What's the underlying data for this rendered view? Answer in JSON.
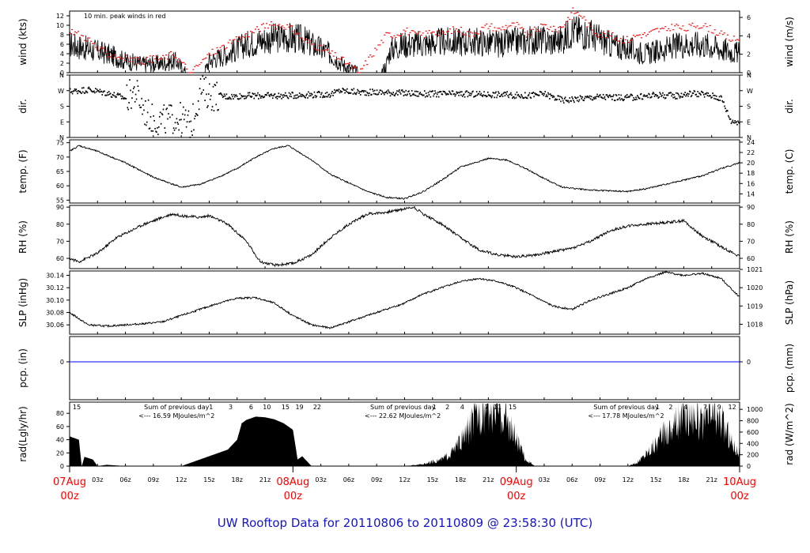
{
  "title": "UW Rooftop Data for 20110806  to  20110809 @ 23:58:30  (UTC)",
  "colors": {
    "series": "#000000",
    "peak": "#ff0000",
    "zero_line": "#0000ff",
    "date_label": "#ff0000",
    "radiation_note": "#9900cc",
    "title": "#1515c8"
  },
  "time_axis": {
    "ticks": [
      {
        "h": 3,
        "label": "03z"
      },
      {
        "h": 6,
        "label": "06z"
      },
      {
        "h": 9,
        "label": "09z"
      },
      {
        "h": 12,
        "label": "12z"
      },
      {
        "h": 15,
        "label": "15z"
      },
      {
        "h": 18,
        "label": "18z"
      },
      {
        "h": 21,
        "label": "21z"
      },
      {
        "h": 27,
        "label": "03z"
      },
      {
        "h": 30,
        "label": "06z"
      },
      {
        "h": 33,
        "label": "09z"
      },
      {
        "h": 36,
        "label": "12z"
      },
      {
        "h": 39,
        "label": "15z"
      },
      {
        "h": 42,
        "label": "18z"
      },
      {
        "h": 45,
        "label": "21z"
      },
      {
        "h": 51,
        "label": "03z"
      },
      {
        "h": 54,
        "label": "06z"
      },
      {
        "h": 57,
        "label": "09z"
      },
      {
        "h": 60,
        "label": "12z"
      },
      {
        "h": 63,
        "label": "15z"
      },
      {
        "h": 66,
        "label": "18z"
      },
      {
        "h": 69,
        "label": "21z"
      }
    ],
    "dates": [
      {
        "h": 0,
        "label": "07Aug",
        "time": "00z"
      },
      {
        "h": 24,
        "label": "08Aug",
        "time": "00z"
      },
      {
        "h": 48,
        "label": "09Aug",
        "time": "00z"
      },
      {
        "h": 72,
        "label": "10Aug",
        "time": "00z"
      }
    ]
  },
  "panels": [
    {
      "id": "wind",
      "left_label": "wind (kts)",
      "right_label": "wind (m/s)",
      "ylim": [
        0,
        13
      ],
      "left_ticks": [
        "0",
        "2",
        "4",
        "6",
        "8",
        "10",
        "12"
      ],
      "right_ticks": [
        "0",
        "2",
        "4",
        "6"
      ],
      "right_values": [
        0,
        3.89,
        7.78,
        11.66
      ],
      "note": "10 min. peak winds in red"
    },
    {
      "id": "dir",
      "left_label": "dir.",
      "right_label": "dir.",
      "ylim": [
        0,
        360
      ],
      "left_ticks": [
        "N",
        "E",
        "S",
        "W",
        "N"
      ],
      "right_ticks": [
        "N",
        "E",
        "S",
        "W",
        "N"
      ],
      "tick_values": [
        0,
        90,
        180,
        270,
        360
      ]
    },
    {
      "id": "temp",
      "left_label": "temp. (F)",
      "right_label": "temp. (C)",
      "ylim": [
        54,
        76
      ],
      "left_ticks": [
        "55",
        "60",
        "65",
        "70",
        "75"
      ],
      "right_ticks": [
        "14",
        "16",
        "18",
        "20",
        "22",
        "24"
      ],
      "right_values": [
        57.2,
        60.8,
        64.4,
        68,
        71.6,
        75.2
      ]
    },
    {
      "id": "rh",
      "left_label": "RH (%)",
      "right_label": "RH (%)",
      "ylim": [
        54,
        91
      ],
      "left_ticks": [
        "60",
        "70",
        "80",
        "90"
      ],
      "right_ticks": [
        "60",
        "70",
        "80",
        "90"
      ]
    },
    {
      "id": "slp",
      "left_label": "SLP (inHg)",
      "right_label": "SLP (hPa)",
      "ylim": [
        30.045,
        30.147
      ],
      "left_ticks": [
        "30.06",
        "30.08",
        "30.10",
        "30.12",
        "30.14"
      ],
      "right_ticks": [
        "1018",
        "1019",
        "1020",
        "1021"
      ],
      "right_values": [
        30.061,
        30.0905,
        30.12,
        30.1495
      ]
    },
    {
      "id": "pcp",
      "left_label": "pcp. (in)",
      "right_label": "pcp. (mm)",
      "ylim": [
        -0.6,
        0.4
      ],
      "left_ticks": [
        "0"
      ],
      "right_ticks": [
        "0"
      ]
    },
    {
      "id": "rad",
      "left_label": "rad(Lgly/hr)",
      "right_label": "rad (W/m^2)",
      "ylim": [
        0,
        97
      ],
      "left_ticks": [
        "0",
        "20",
        "40",
        "60",
        "80"
      ],
      "right_ticks": [
        "0",
        "200",
        "400",
        "600",
        "800",
        "1000"
      ],
      "right_values": [
        0,
        17.2,
        34.4,
        51.6,
        68.8,
        86
      ]
    }
  ],
  "radiation_notes": [
    {
      "x_h": 1.5,
      "hours": [
        "15"
      ]
    },
    {
      "x_h": 17,
      "hours": [
        "1",
        "3",
        "6",
        "10",
        "15",
        "19",
        "22"
      ],
      "hours_h": [
        15.2,
        17.3,
        19.5,
        21.2,
        23.2,
        24.7,
        26.6
      ],
      "sum_label": "Sum of previous day",
      "value_label": "<--- 16.59 MJoules/m^2",
      "label_h": 11.5
    },
    {
      "x_h": 41,
      "hours": [
        "1",
        "2",
        "4",
        "7",
        "11",
        "15"
      ],
      "hours_h": [
        39.2,
        40.6,
        42.2,
        44.8,
        46.0,
        47.6
      ],
      "sum_label": "Sum of previous day",
      "value_label": "<--- 22.62 MJoules/m^2",
      "label_h": 35.8
    },
    {
      "x_h": 65,
      "hours": [
        "1",
        "2",
        "4",
        "7",
        "9",
        "12"
      ],
      "hours_h": [
        63.2,
        64.6,
        66.2,
        68.3,
        69.8,
        71.2
      ],
      "sum_label": "Sum of previous day",
      "value_label": "<--- 17.78 MJoules/m^2",
      "label_h": 59.8
    }
  ],
  "chart_data": {
    "type": "line",
    "title": "UW Rooftop Data for 20110806  to  20110809 @ 23:58:30  (UTC)",
    "x": {
      "unit": "hours after 07Aug 00z",
      "range": [
        0,
        72
      ]
    },
    "series": [
      {
        "name": "wind (kts)",
        "type": "line",
        "x": [
          0,
          2,
          4,
          6,
          8,
          10,
          11.5,
          12,
          12.5,
          14,
          14.5,
          15,
          17,
          19,
          21,
          23,
          25,
          26,
          28,
          29.5,
          31,
          31.5,
          33.5,
          34,
          34.5,
          36,
          38,
          40,
          42,
          44,
          46,
          48,
          50,
          52,
          53,
          54,
          56,
          58,
          60,
          62,
          64,
          66,
          68,
          70,
          72
        ],
        "y": [
          6,
          5,
          4,
          2.5,
          1.8,
          2,
          2.5,
          1,
          0,
          0,
          0,
          2.5,
          4,
          6,
          7,
          7.5,
          7,
          6,
          4,
          1.5,
          0,
          0,
          0,
          1.5,
          5,
          6,
          6,
          6.5,
          6.5,
          6.5,
          6,
          6.5,
          7,
          6.5,
          7,
          9,
          8,
          6,
          5,
          4,
          5,
          6,
          6,
          5,
          4
        ]
      },
      {
        "name": "dir. (deg)",
        "type": "scatter",
        "x": [
          0,
          2,
          4,
          6,
          7,
          8,
          9,
          10,
          11,
          12,
          13,
          14,
          15,
          17,
          19,
          21,
          23,
          25,
          28,
          29,
          31,
          33,
          36,
          38,
          41,
          45,
          47,
          49,
          51,
          52,
          53,
          55,
          57,
          59,
          61,
          63,
          65,
          67,
          69,
          70,
          71,
          72
        ],
        "y": [
          265,
          275,
          255,
          225,
          270,
          150,
          100,
          100,
          110,
          110,
          60,
          280,
          245,
          235,
          240,
          240,
          240,
          245,
          248,
          270,
          260,
          260,
          255,
          250,
          250,
          248,
          245,
          240,
          250,
          230,
          215,
          225,
          235,
          228,
          232,
          245,
          240,
          255,
          240,
          225,
          95,
          90
        ]
      },
      {
        "name": "temp. (F)",
        "type": "line",
        "x": [
          0,
          1,
          3,
          6,
          9,
          12,
          14,
          16,
          18,
          20,
          22,
          23.5,
          24,
          26,
          28,
          30,
          32,
          34,
          36,
          38,
          40,
          42,
          45,
          47,
          49,
          51,
          53,
          56,
          60,
          62,
          64,
          66,
          68,
          70,
          72
        ],
        "y": [
          72,
          74,
          72,
          68,
          63,
          59.5,
          60.5,
          63,
          66,
          70,
          73,
          74,
          73,
          69,
          64,
          61,
          58,
          56,
          55.5,
          58,
          62,
          66.5,
          69.5,
          69,
          66,
          62.5,
          59.5,
          58.5,
          58,
          59,
          60.5,
          62,
          63.5,
          66,
          68
        ]
      },
      {
        "name": "RH (%)",
        "type": "line",
        "x": [
          0,
          1,
          3,
          5,
          8,
          10,
          11,
          12,
          14,
          15,
          17,
          19,
          20.5,
          22,
          24,
          26,
          28,
          30,
          32,
          34,
          36,
          37,
          38,
          40,
          42,
          44,
          46,
          48,
          50,
          52,
          54,
          56,
          58,
          60,
          62,
          64,
          66,
          68,
          70,
          72
        ],
        "y": [
          60,
          58,
          63,
          72,
          80,
          84,
          86,
          85,
          84,
          85,
          80,
          70,
          58,
          56,
          57,
          62,
          72,
          80,
          86,
          87,
          89,
          90,
          86,
          80,
          72,
          65,
          62,
          61,
          62,
          64,
          66,
          70,
          76,
          79,
          80,
          81,
          82,
          73,
          67,
          61
        ]
      },
      {
        "name": "SLP (inHg)",
        "type": "line",
        "x": [
          0,
          2,
          4,
          6,
          8,
          10,
          12,
          14,
          16,
          18,
          20,
          22,
          24,
          26,
          28,
          30,
          32,
          34,
          36,
          38,
          40,
          42,
          44,
          46,
          48,
          50,
          52,
          54,
          56,
          58,
          60,
          62,
          64,
          66,
          68,
          70,
          72
        ],
        "y": [
          30.08,
          30.06,
          30.058,
          30.06,
          30.062,
          30.065,
          30.075,
          30.085,
          30.095,
          30.103,
          30.104,
          30.095,
          30.075,
          30.06,
          30.055,
          30.065,
          30.075,
          30.085,
          30.095,
          30.11,
          30.12,
          30.13,
          30.135,
          30.13,
          30.12,
          30.105,
          30.09,
          30.085,
          30.1,
          30.11,
          30.12,
          30.135,
          30.145,
          30.14,
          30.143,
          30.135,
          30.105
        ]
      },
      {
        "name": "pcp. (in)",
        "type": "line",
        "x": [
          0,
          72
        ],
        "y": [
          0,
          0
        ]
      },
      {
        "name": "rad (Lgly/hr)",
        "type": "area",
        "x": [
          0,
          1,
          1.3,
          1.6,
          2.5,
          3,
          4,
          6,
          12,
          13,
          14,
          15,
          16,
          17,
          18,
          18.5,
          19,
          20,
          21,
          22,
          23,
          24,
          24.5,
          25,
          26,
          36,
          38,
          40,
          41,
          42,
          43,
          44,
          45,
          46,
          47,
          48,
          49,
          50,
          60,
          61,
          62,
          63,
          64,
          65,
          66,
          67,
          68,
          69,
          70,
          71,
          72
        ],
        "y": [
          45,
          40,
          0,
          14,
          10,
          0,
          2,
          0,
          0,
          5,
          10,
          15,
          20,
          25,
          40,
          65,
          70,
          75,
          74,
          71,
          65,
          55,
          10,
          15,
          0,
          0,
          3,
          10,
          20,
          35,
          60,
          80,
          90,
          88,
          70,
          40,
          10,
          0,
          0,
          5,
          20,
          35,
          50,
          65,
          75,
          85,
          60,
          80,
          70,
          40,
          20
        ]
      },
      {
        "name": "10 min. peak winds",
        "type": "scatter",
        "x": [
          0,
          1,
          2,
          3,
          4,
          5,
          6,
          7,
          8,
          9,
          10,
          11,
          13,
          15,
          16,
          17,
          18,
          19,
          20,
          21,
          22,
          23,
          24,
          25,
          26,
          27,
          28,
          29,
          31,
          34,
          35,
          36,
          37,
          38,
          39,
          40,
          41,
          42,
          43,
          44,
          45,
          46,
          47,
          48,
          49,
          50,
          51,
          52,
          53,
          54,
          55,
          56,
          57,
          58,
          59,
          60,
          61,
          62,
          63,
          64,
          65,
          66,
          67,
          68,
          69,
          70,
          71,
          72
        ],
        "y": [
          9,
          8,
          7,
          5,
          4,
          3.5,
          3,
          2.5,
          2.5,
          3,
          3,
          4,
          0,
          4,
          5,
          6,
          7,
          8,
          9,
          10,
          10,
          10,
          9,
          7,
          6,
          5,
          4,
          3,
          0,
          8,
          8,
          9,
          8,
          8,
          9,
          8,
          9,
          9,
          8,
          9,
          10,
          9,
          10,
          10,
          8,
          9,
          10,
          9,
          10,
          13,
          12,
          9,
          8,
          8,
          7,
          7,
          8,
          8,
          9,
          9,
          10,
          9,
          10,
          10,
          9,
          8,
          7,
          7
        ]
      }
    ]
  }
}
